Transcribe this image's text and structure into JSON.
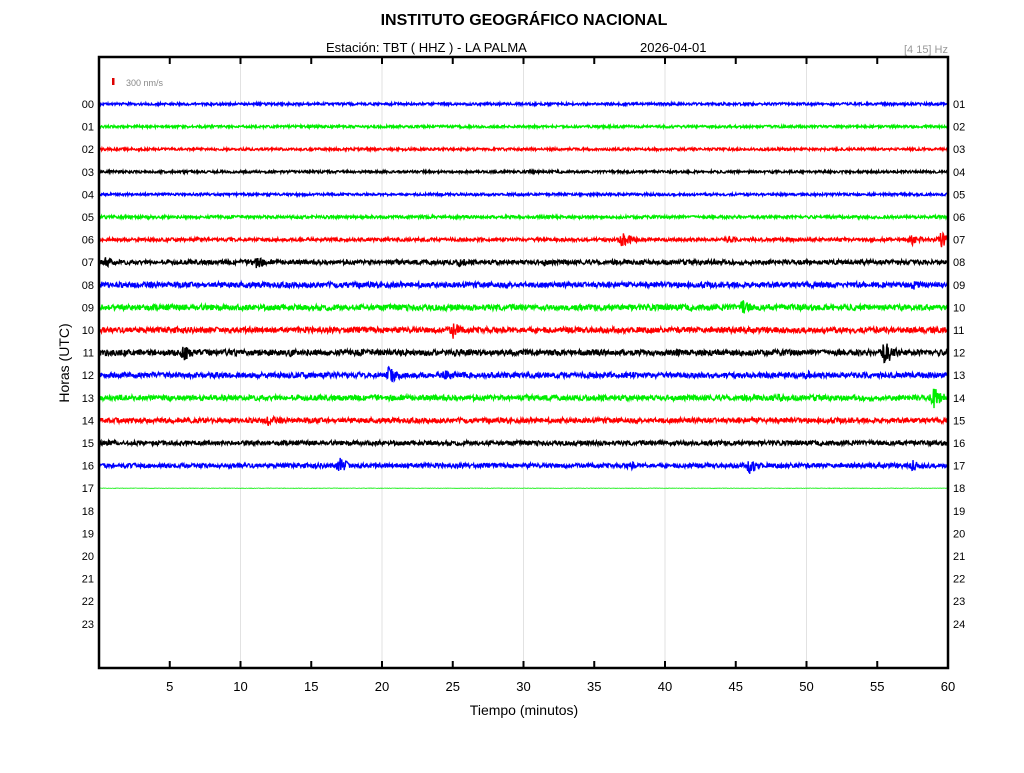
{
  "header": {
    "title": "INSTITUTO GEOGRÁFICO NACIONAL",
    "station_label": "Estación:  TBT ( HHZ ) - LA PALMA",
    "date": "2026-04-01",
    "filter": "[4 15] Hz"
  },
  "chart_data": {
    "type": "line",
    "title": "INSTITUTO GEOGRÁFICO NACIONAL",
    "xlabel": "Tiempo (minutos)",
    "ylabel": "Horas (UTC)",
    "xlim": [
      0,
      60
    ],
    "x_ticks": [
      "5",
      "10",
      "15",
      "20",
      "25",
      "30",
      "35",
      "40",
      "45",
      "50",
      "55",
      "60"
    ],
    "grid_x": [
      10,
      20,
      30,
      40,
      50
    ],
    "scale_label": "300 nm/s",
    "scale_color": "#dd0000",
    "left_labels": [
      "00",
      "01",
      "02",
      "03",
      "04",
      "05",
      "06",
      "07",
      "08",
      "09",
      "10",
      "11",
      "12",
      "13",
      "14",
      "15",
      "16",
      "17",
      "18",
      "19",
      "20",
      "21",
      "22",
      "23"
    ],
    "right_labels": [
      "01",
      "02",
      "03",
      "04",
      "05",
      "06",
      "07",
      "08",
      "09",
      "10",
      "11",
      "12",
      "13",
      "14",
      "15",
      "16",
      "17",
      "18",
      "19",
      "20",
      "21",
      "22",
      "23",
      "24"
    ],
    "colors": [
      "#0000ff",
      "#00ee00",
      "#ff0000",
      "#000000"
    ],
    "traces": [
      {
        "hour": 0,
        "noise": 60,
        "events": []
      },
      {
        "hour": 1,
        "noise": 60,
        "events": []
      },
      {
        "hour": 2,
        "noise": 60,
        "events": []
      },
      {
        "hour": 3,
        "noise": 60,
        "events": []
      },
      {
        "hour": 4,
        "noise": 60,
        "events": []
      },
      {
        "hour": 5,
        "noise": 70,
        "events": []
      },
      {
        "hour": 6,
        "noise": 80,
        "events": [
          [
            37,
            450
          ],
          [
            44.5,
            200
          ],
          [
            57.5,
            300
          ],
          [
            59.5,
            400
          ]
        ]
      },
      {
        "hour": 7,
        "noise": 110,
        "events": [
          [
            0.5,
            350
          ],
          [
            11,
            400
          ],
          [
            25.5,
            250
          ],
          [
            31.5,
            200
          ]
        ]
      },
      {
        "hour": 8,
        "noise": 130,
        "events": [
          [
            17.5,
            200
          ],
          [
            57.5,
            300
          ]
        ]
      },
      {
        "hour": 9,
        "noise": 140,
        "events": [
          [
            45.5,
            400
          ]
        ]
      },
      {
        "hour": 10,
        "noise": 140,
        "events": [
          [
            25,
            450
          ]
        ]
      },
      {
        "hour": 11,
        "noise": 140,
        "events": [
          [
            6,
            450
          ],
          [
            13.5,
            250
          ],
          [
            55.5,
            700
          ]
        ]
      },
      {
        "hour": 12,
        "noise": 130,
        "events": [
          [
            20.5,
            500
          ],
          [
            24.5,
            350
          ],
          [
            50,
            250
          ]
        ]
      },
      {
        "hour": 13,
        "noise": 130,
        "events": [
          [
            48,
            250
          ],
          [
            59,
            550
          ]
        ]
      },
      {
        "hour": 14,
        "noise": 120,
        "events": [
          [
            12,
            300
          ]
        ]
      },
      {
        "hour": 15,
        "noise": 110,
        "events": []
      },
      {
        "hour": 16,
        "noise": 110,
        "events": [
          [
            17,
            450
          ],
          [
            37.5,
            250
          ],
          [
            46,
            450
          ],
          [
            57.5,
            300
          ]
        ]
      },
      {
        "hour": 17,
        "noise": 10,
        "events": []
      }
    ]
  }
}
